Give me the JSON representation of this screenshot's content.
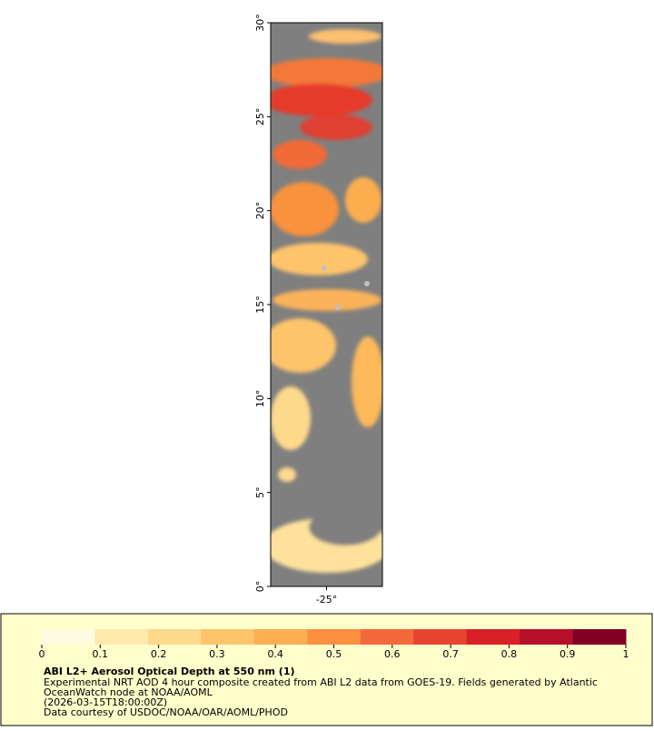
{
  "map": {
    "ylim": [
      0,
      30
    ],
    "yticks": [
      {
        "value": 0,
        "label": "0°"
      },
      {
        "value": 5,
        "label": "5°"
      },
      {
        "value": 10,
        "label": "10°"
      },
      {
        "value": 15,
        "label": "15°"
      },
      {
        "value": 20,
        "label": "20°"
      },
      {
        "value": 25,
        "label": "25°"
      },
      {
        "value": 30,
        "label": "30°"
      }
    ],
    "xlim": [
      -28,
      -22
    ],
    "xticks": [
      {
        "value": -25,
        "label": "-25°"
      }
    ]
  },
  "legend": {
    "range": [
      0,
      1
    ],
    "ticks": [
      0,
      0.1,
      0.2,
      0.3,
      0.4,
      0.5,
      0.6,
      0.7,
      0.8,
      0.9,
      1
    ],
    "colors": [
      "#fffbe0",
      "#fee9ad",
      "#fdd98c",
      "#fdc46a",
      "#fcae50",
      "#fa9040",
      "#f4693a",
      "#e8432e",
      "#d92026",
      "#b5102a",
      "#800026"
    ],
    "title": "ABI L2+ Aerosol Optical Depth at 550 nm (1)",
    "lines": [
      "Experimental NRT AOD 4 hour composite created from ABI L2 data from GOES-19. Fields generated by Atlantic",
      "OceanWatch node at NOAA/AOML",
      "(2026-03-15T18:00:00Z)",
      "Data courtesy of USDOC/NOAA/OAR/AOML/PHOD"
    ]
  }
}
